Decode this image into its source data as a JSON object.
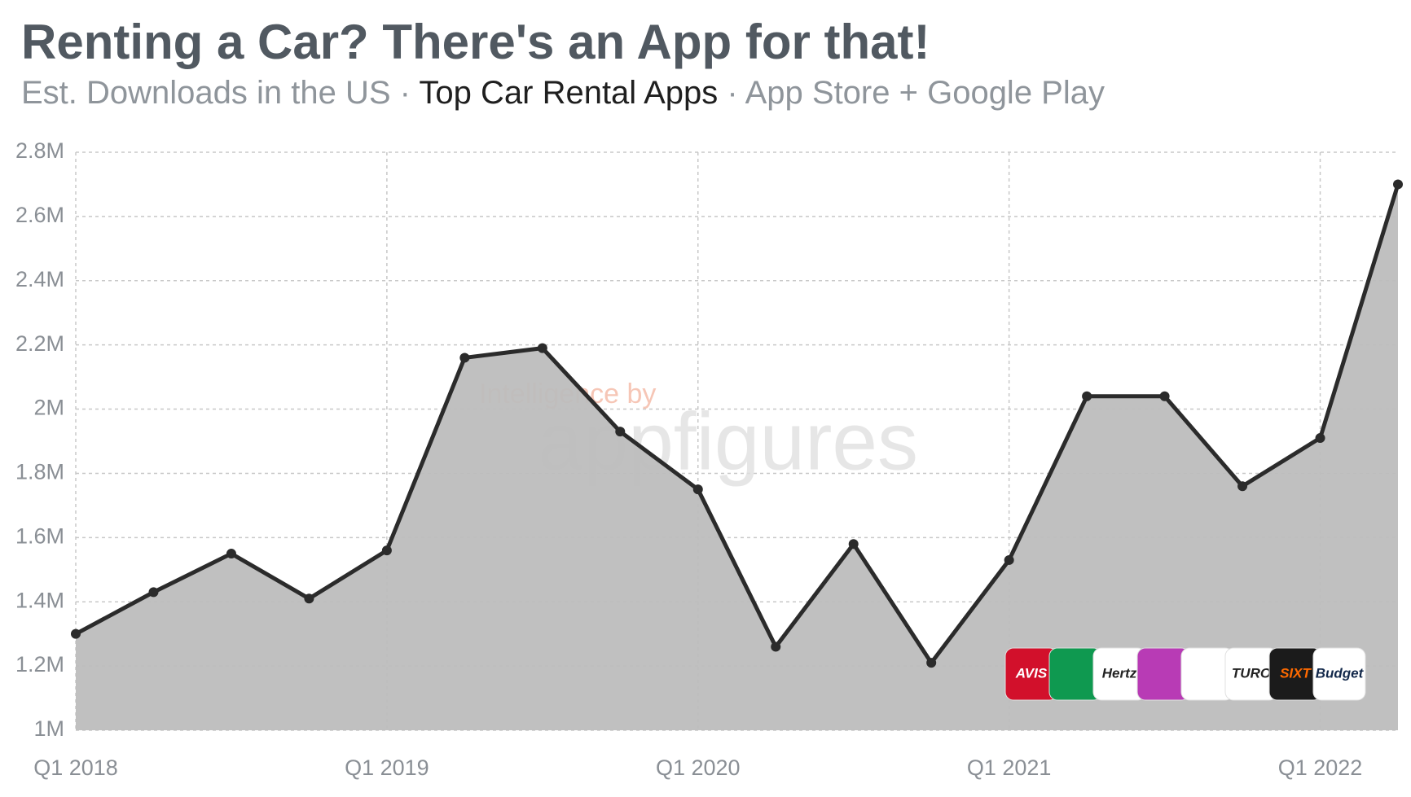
{
  "chart_data": {
    "type": "area",
    "title": "Renting a Car? There's an App for that!",
    "subtitle": [
      "Est. Downloads in the US · ",
      "Top Car Rental Apps",
      " · App Store + Google Play"
    ],
    "watermark": [
      "Intelligence by",
      "appfigures"
    ],
    "app_icons": [
      "AVIS",
      "Hertz",
      "TURO",
      "SIXT",
      "Budget"
    ],
    "categories": [
      "Q1 2018",
      null,
      null,
      null,
      "Q1 2019",
      null,
      null,
      null,
      "Q1 2020",
      null,
      null,
      null,
      "Q1 2021",
      null,
      null,
      null,
      "Q1 2022",
      null
    ],
    "series": [
      {
        "name": "Downloads",
        "color": "#2b2b2b",
        "fill": "#bdbdbd",
        "values": [
          1300000,
          1430000,
          1550000,
          1410000,
          1560000,
          2160000,
          2190000,
          1930000,
          1750000,
          1260000,
          1580000,
          1210000,
          1530000,
          2040000,
          2040000,
          1760000,
          1910000,
          2700000
        ]
      }
    ],
    "ylim": [
      1000000,
      2800000
    ],
    "yticks": [
      {
        "value": 1000000,
        "label": "1M"
      },
      {
        "value": 1200000,
        "label": "1.2M"
      },
      {
        "value": 1400000,
        "label": "1.4M"
      },
      {
        "value": 1600000,
        "label": "1.6M"
      },
      {
        "value": 1800000,
        "label": "1.8M"
      },
      {
        "value": 2000000,
        "label": "2M"
      },
      {
        "value": 2200000,
        "label": "2.2M"
      },
      {
        "value": 2400000,
        "label": "2.4M"
      },
      {
        "value": 2600000,
        "label": "2.6M"
      },
      {
        "value": 2800000,
        "label": "2.8M"
      }
    ],
    "grid": true
  }
}
